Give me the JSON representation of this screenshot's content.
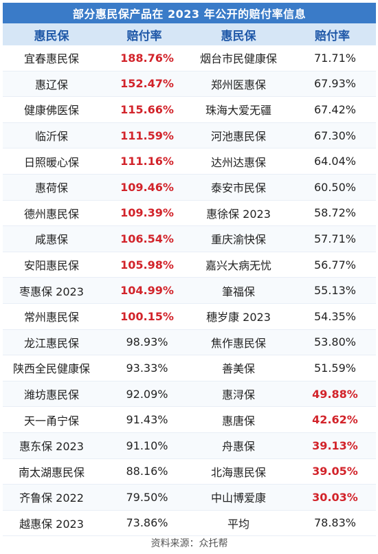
{
  "title": "部分惠民保产品在 2023 年公开的赔付率信息",
  "headers": [
    "惠民保",
    "赔付率",
    "惠民保",
    "赔付率"
  ],
  "rows": [
    {
      "n1": "宜春惠民保",
      "r1": "188.76%",
      "h1": true,
      "n2": "烟台市民健康保",
      "r2": "71.71%",
      "h2": false
    },
    {
      "n1": "惠辽保",
      "r1": "152.47%",
      "h1": true,
      "n2": "郑州医惠保",
      "r2": "67.93%",
      "h2": false
    },
    {
      "n1": "健康佛医保",
      "r1": "115.66%",
      "h1": true,
      "n2": "珠海大爱无疆",
      "r2": "67.42%",
      "h2": false
    },
    {
      "n1": "临沂保",
      "r1": "111.59%",
      "h1": true,
      "n2": "河池惠民保",
      "r2": "67.30%",
      "h2": false
    },
    {
      "n1": "日照暖心保",
      "r1": "111.16%",
      "h1": true,
      "n2": "达州达惠保",
      "r2": "64.04%",
      "h2": false
    },
    {
      "n1": "惠荷保",
      "r1": "109.46%",
      "h1": true,
      "n2": "泰安市民保",
      "r2": "60.50%",
      "h2": false
    },
    {
      "n1": "德州惠民保",
      "r1": "109.39%",
      "h1": true,
      "n2": "惠徐保 2023",
      "r2": "58.72%",
      "h2": false
    },
    {
      "n1": "咸惠保",
      "r1": "106.54%",
      "h1": true,
      "n2": "重庆渝快保",
      "r2": "57.71%",
      "h2": false
    },
    {
      "n1": "安阳惠民保",
      "r1": "105.98%",
      "h1": true,
      "n2": "嘉兴大病无忧",
      "r2": "56.77%",
      "h2": false
    },
    {
      "n1": "枣惠保 2023",
      "r1": "104.99%",
      "h1": true,
      "n2": "筆福保",
      "r2": "55.13%",
      "h2": false
    },
    {
      "n1": "常州惠民保",
      "r1": "100.15%",
      "h1": true,
      "n2": "穗岁康 2023",
      "r2": "54.35%",
      "h2": false
    },
    {
      "n1": "龙江惠民保",
      "r1": "98.93%",
      "h1": false,
      "n2": "焦作惠民保",
      "r2": "53.80%",
      "h2": false
    },
    {
      "n1": "陕西全民健康保",
      "r1": "93.33%",
      "h1": false,
      "n2": "善美保",
      "r2": "51.59%",
      "h2": false
    },
    {
      "n1": "潍坊惠民保",
      "r1": "92.09%",
      "h1": false,
      "n2": "惠浔保",
      "r2": "49.88%",
      "h2": true
    },
    {
      "n1": "天一甬宁保",
      "r1": "91.43%",
      "h1": false,
      "n2": "惠唐保",
      "r2": "42.62%",
      "h2": true
    },
    {
      "n1": "惠东保 2023",
      "r1": "91.10%",
      "h1": false,
      "n2": "舟惠保",
      "r2": "39.13%",
      "h2": true
    },
    {
      "n1": "南太湖惠民保",
      "r1": "88.16%",
      "h1": false,
      "n2": "北海惠民保",
      "r2": "39.05%",
      "h2": true
    },
    {
      "n1": "齐鲁保 2022",
      "r1": "79.50%",
      "h1": false,
      "n2": "中山博爱康",
      "r2": "30.03%",
      "h2": true
    },
    {
      "n1": "越惠保 2023",
      "r1": "73.86%",
      "h1": false,
      "n2": "平均",
      "r2": "78.83%",
      "h2": false
    }
  ],
  "footer": "资料来源：众托帮",
  "colors": {
    "title_bg": "#3a7bc8",
    "header_bg": "#d6e6f6",
    "header_text": "#1f58a8",
    "highlight": "#d2232a"
  }
}
